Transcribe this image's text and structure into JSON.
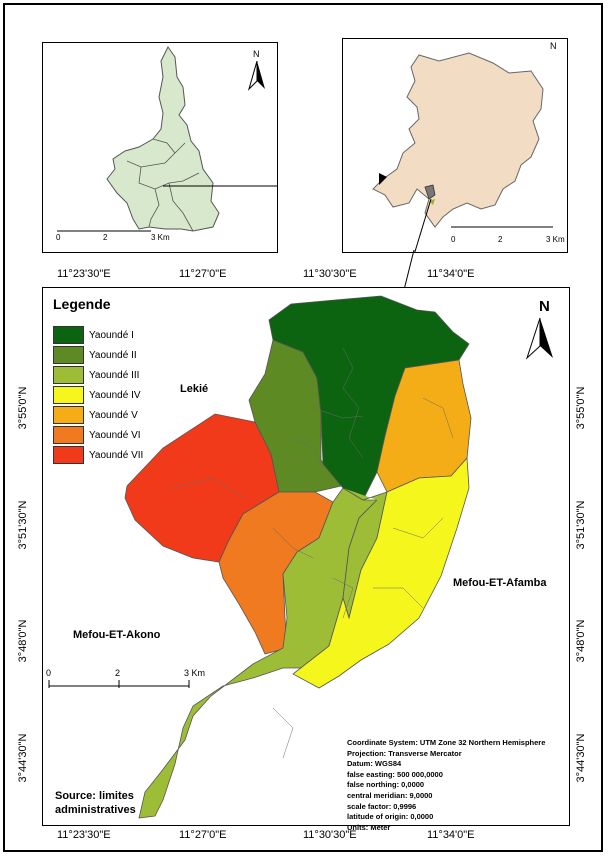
{
  "legend": {
    "title": "Legende",
    "items": [
      {
        "label": "Yaoundé I",
        "color": "#0c6310"
      },
      {
        "label": "Yaoundé II",
        "color": "#5e8a23"
      },
      {
        "label": "Yaoundé III",
        "color": "#9ebd37"
      },
      {
        "label": "Yaoundé IV",
        "color": "#f4f61c"
      },
      {
        "label": "Yaoundé V",
        "color": "#f5ad17"
      },
      {
        "label": "Yaoundé VI",
        "color": "#f07a1f"
      },
      {
        "label": "Yaoundé VII",
        "color": "#f03a19"
      }
    ]
  },
  "map": {
    "north_label": "N",
    "top_coords": [
      "11°23'30\"E",
      "11°27'0\"E",
      "11°30'30\"E",
      "11°34'0\"E"
    ],
    "bottom_coords": [
      "11°23'30\"E",
      "11°27'0\"E",
      "11°30'30\"E",
      "11°34'0\"E"
    ],
    "left_coords": [
      "3°55'0\"N",
      "3°51'30\"N",
      "3°48'0\"N",
      "3°44'30\"N"
    ],
    "right_coords": [
      "3°55'0\"N",
      "3°51'30\"N",
      "3°48'0\"N",
      "3°44'30\"N"
    ],
    "places": {
      "lekie": "Lekié",
      "mefou_afamba": "Mefou-ET-Afamba",
      "mefou_akono": "Mefou-ET-Akono"
    },
    "scale": {
      "labels": [
        "0",
        "2",
        "3 Km"
      ]
    },
    "source": "Source: limites administratives"
  },
  "inset_left": {
    "north_label": "N",
    "scale_labels": [
      "0",
      "2",
      "3 Km"
    ],
    "fill": "#d7e8cc"
  },
  "inset_right": {
    "north_label": "N",
    "scale_labels": [
      "0",
      "2",
      "3 Km"
    ],
    "fill": "#f2dcc3"
  },
  "projection_info": [
    "Coordinate System: UTM Zone 32 Northern Hemisphere",
    "Projection: Transverse Mercator",
    "Datum: WGS84",
    "false easting: 500 000,0000",
    "false northing: 0,0000",
    "central meridian: 9,0000",
    "scale factor: 0,9996",
    "latitude of origin: 0,0000",
    "Units: Meter"
  ]
}
